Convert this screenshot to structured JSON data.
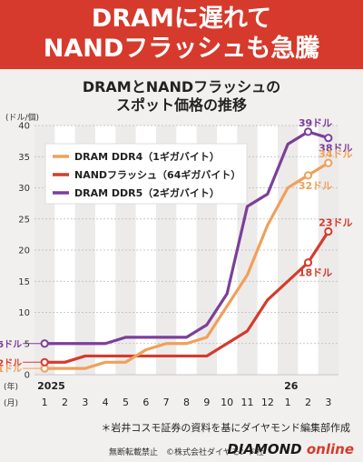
{
  "header": {
    "line1": "DRAMに遅れて",
    "line2": "NANDフラッシュも急騰"
  },
  "chart_data": {
    "type": "line",
    "title": "DRAMとNANDフラッシュの",
    "subtitle": "スポット価格の推移",
    "ylabel": "(ドル/個)",
    "xlabel_year_prefix": "(年)",
    "xlabel_month_prefix": "(月)",
    "year_labels": [
      {
        "index": 0,
        "label": "2025"
      },
      {
        "index": 12,
        "label": "26"
      }
    ],
    "categories": [
      "1",
      "2",
      "3",
      "4",
      "5",
      "6",
      "7",
      "8",
      "9",
      "10",
      "11",
      "12",
      "1",
      "2",
      "3"
    ],
    "ylim": [
      0,
      40
    ],
    "yticks": [
      0,
      5,
      10,
      15,
      20,
      25,
      30,
      35,
      40
    ],
    "grid": true,
    "legend_position": "top-left",
    "series": [
      {
        "name": "DRAM DDR4（1ギガバイト）",
        "color": "#f0a05a",
        "values": [
          1,
          1,
          1,
          2,
          2,
          4,
          5,
          5,
          6,
          11,
          16,
          24,
          30,
          32,
          34
        ]
      },
      {
        "name": "NANDフラッシュ（64ギガバイト）",
        "color": "#d63a2c",
        "values": [
          2,
          2,
          3,
          3,
          3,
          3,
          3,
          3,
          3,
          5,
          7,
          12,
          15,
          18,
          23
        ]
      },
      {
        "name": "DRAM DDR5（2ギガバイト）",
        "color": "#7b3f98",
        "values": [
          5,
          5,
          5,
          5,
          6,
          6,
          6,
          6,
          8,
          13,
          27,
          29,
          37,
          39,
          38
        ]
      }
    ],
    "annotations": [
      {
        "series": 2,
        "index": 0,
        "label": "5ドル",
        "side": "left"
      },
      {
        "series": 1,
        "index": 0,
        "label": "2ドル",
        "side": "left"
      },
      {
        "series": 0,
        "index": 0,
        "label": "1ドル",
        "side": "left"
      },
      {
        "series": 2,
        "index": 13,
        "label": "39ドル",
        "side": "above"
      },
      {
        "series": 2,
        "index": 14,
        "label": "38ドル",
        "side": "below"
      },
      {
        "series": 0,
        "index": 14,
        "label": "34ドル",
        "side": "above"
      },
      {
        "series": 0,
        "index": 13,
        "label": "32ドル",
        "side": "below"
      },
      {
        "series": 1,
        "index": 14,
        "label": "23ドル",
        "side": "above"
      },
      {
        "series": 1,
        "index": 13,
        "label": "18ドル",
        "side": "below"
      }
    ]
  },
  "note": "＊岩井コスモ証券の資料を基にダイヤモンド編集部作成",
  "footer": {
    "rights": "無断転載禁止　©株式会社ダイヤモンド社",
    "brand_main": "DIAMOND",
    "brand_sub": "online"
  }
}
